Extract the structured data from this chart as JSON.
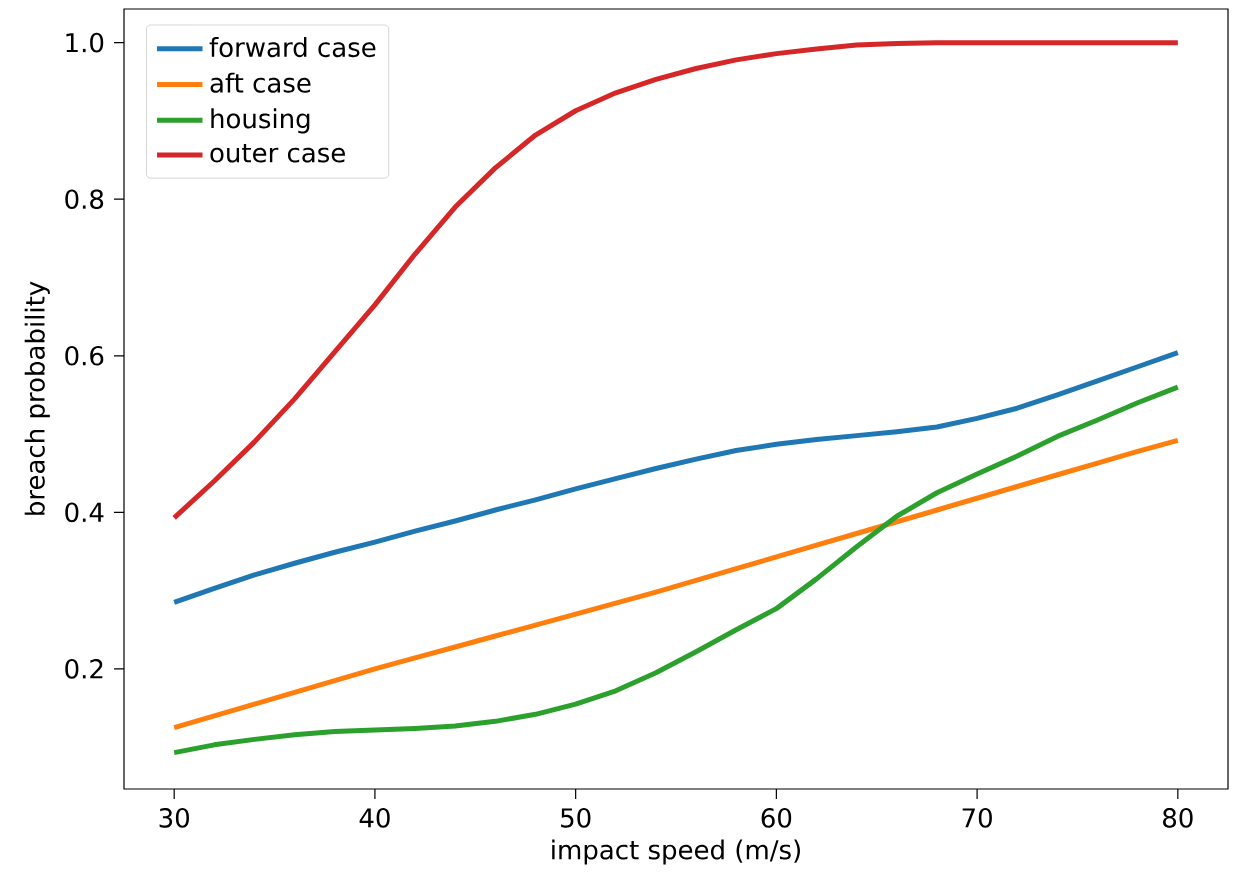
{
  "chart_data": {
    "type": "line",
    "xlabel": "impact speed (m/s)",
    "ylabel": "breach probability",
    "x": [
      30,
      32,
      34,
      36,
      38,
      40,
      42,
      44,
      46,
      48,
      50,
      52,
      54,
      56,
      58,
      60,
      62,
      64,
      66,
      68,
      70,
      72,
      74,
      76,
      78,
      80
    ],
    "series": [
      {
        "name": "forward case",
        "color": "#1f77b4",
        "values": [
          0.285,
          0.303,
          0.32,
          0.335,
          0.349,
          0.362,
          0.376,
          0.389,
          0.403,
          0.416,
          0.43,
          0.443,
          0.456,
          0.468,
          0.479,
          0.487,
          0.493,
          0.498,
          0.503,
          0.509,
          0.52,
          0.533,
          0.55,
          0.568,
          0.586,
          0.604
        ]
      },
      {
        "name": "aft case",
        "color": "#ff7f0e",
        "values": [
          0.125,
          0.14,
          0.155,
          0.17,
          0.185,
          0.2,
          0.214,
          0.228,
          0.242,
          0.256,
          0.27,
          0.284,
          0.298,
          0.313,
          0.328,
          0.343,
          0.358,
          0.373,
          0.388,
          0.403,
          0.418,
          0.433,
          0.448,
          0.463,
          0.478,
          0.492
        ]
      },
      {
        "name": "housing",
        "color": "#2ca02c",
        "values": [
          0.093,
          0.103,
          0.11,
          0.116,
          0.12,
          0.122,
          0.124,
          0.127,
          0.133,
          0.142,
          0.155,
          0.172,
          0.195,
          0.222,
          0.25,
          0.277,
          0.315,
          0.356,
          0.395,
          0.425,
          0.449,
          0.472,
          0.497,
          0.518,
          0.54,
          0.56
        ]
      },
      {
        "name": "outer case",
        "color": "#d62728",
        "values": [
          0.393,
          0.44,
          0.49,
          0.545,
          0.605,
          0.665,
          0.73,
          0.79,
          0.84,
          0.882,
          0.913,
          0.936,
          0.953,
          0.967,
          0.978,
          0.986,
          0.992,
          0.997,
          0.999,
          1.0,
          1.0,
          1.0,
          1.0,
          1.0,
          1.0,
          1.0
        ]
      }
    ],
    "xlim": [
      27.5,
      82.5
    ],
    "ylim": [
      0.0466,
      1.043
    ],
    "xticks": [
      30,
      40,
      50,
      60,
      70,
      80
    ],
    "yticks": [
      0.2,
      0.4,
      0.6,
      0.8,
      {
        "value": 1.0,
        "label": "1.0"
      }
    ],
    "grid": false,
    "legend": "top left",
    "marker": "none",
    "line_style": "solid"
  }
}
